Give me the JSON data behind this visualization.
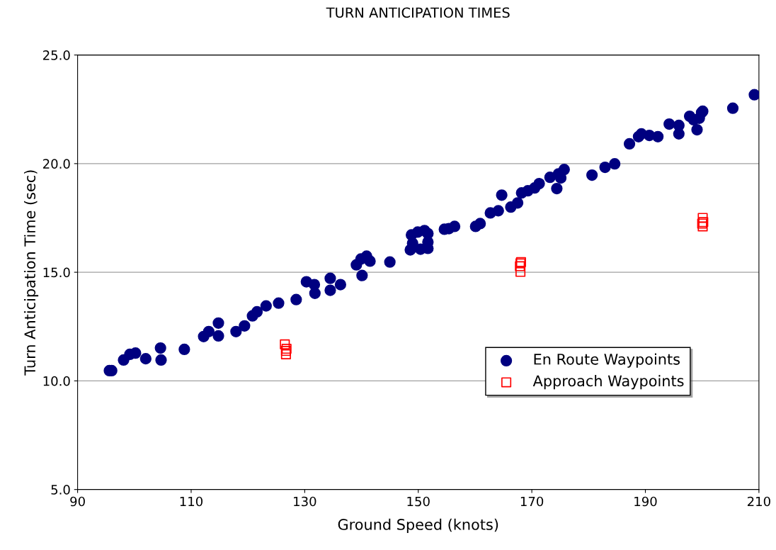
{
  "chart_data": {
    "type": "scatter",
    "title": "TURN ANTICIPATION TIMES",
    "xlabel": "Ground Speed (knots)",
    "ylabel": "Turn Anticipation Time (sec)",
    "xlim": [
      90,
      210
    ],
    "xticks": [
      90,
      110,
      130,
      150,
      170,
      190,
      210
    ],
    "ylim": [
      5,
      25
    ],
    "yticks": [
      {
        "value": 5,
        "label": "5.0"
      },
      {
        "value": 10,
        "label": "10.0"
      },
      {
        "value": 15,
        "label": "15.0"
      },
      {
        "value": 20,
        "label": "20.0"
      },
      {
        "value": 25,
        "label": "25.0"
      }
    ],
    "grid": "y",
    "legend": "bottom right",
    "series": [
      {
        "name": "En Route Waypoints",
        "color": "#000080",
        "marker": "circle",
        "x": [
          95.6,
          96.0,
          98.1,
          99.2,
          100.2,
          102.0,
          104.6,
          104.7,
          108.8,
          112.2,
          113.1,
          114.8,
          114.8,
          117.9,
          119.4,
          120.8,
          121.6,
          123.2,
          125.4,
          128.5,
          130.3,
          131.7,
          131.8,
          134.5,
          134.5,
          136.3,
          139.1,
          139.9,
          140.1,
          140.9,
          141.5,
          145.0,
          148.6,
          148.8,
          149.0,
          149.9,
          150.4,
          151.1,
          151.7,
          151.7,
          151.7,
          154.6,
          155.4,
          156.4,
          160.1,
          160.9,
          162.7,
          164.1,
          164.7,
          166.3,
          167.5,
          168.2,
          169.3,
          170.5,
          171.3,
          173.2,
          174.4,
          174.7,
          175.1,
          175.7,
          180.6,
          182.9,
          184.6,
          187.2,
          188.8,
          189.3,
          190.7,
          192.2,
          194.2,
          195.9,
          195.9,
          197.8,
          198.5,
          199.1,
          199.5,
          199.9,
          200.1,
          205.4,
          209.2
        ],
        "values": [
          10.47,
          10.47,
          10.96,
          11.22,
          11.28,
          11.02,
          11.51,
          10.96,
          11.45,
          12.04,
          12.27,
          12.07,
          12.66,
          12.27,
          12.53,
          12.99,
          13.18,
          13.45,
          13.58,
          13.74,
          14.56,
          14.43,
          14.03,
          14.72,
          14.17,
          14.43,
          15.34,
          15.61,
          14.85,
          15.74,
          15.51,
          15.47,
          16.03,
          16.72,
          16.33,
          16.85,
          16.06,
          16.92,
          16.78,
          16.39,
          16.1,
          16.98,
          17.01,
          17.11,
          17.11,
          17.24,
          17.73,
          17.83,
          18.55,
          18.0,
          18.19,
          18.65,
          18.75,
          18.88,
          19.08,
          19.37,
          18.85,
          19.53,
          19.34,
          19.73,
          19.47,
          19.83,
          19.99,
          20.91,
          21.24,
          21.37,
          21.3,
          21.24,
          21.82,
          21.76,
          21.37,
          22.18,
          22.02,
          21.56,
          22.09,
          22.35,
          22.41,
          22.55,
          23.17
        ]
      },
      {
        "name": "Approach Waypoints",
        "color": "#ff0000",
        "marker": "square",
        "x": [
          126.5,
          126.7,
          126.8,
          126.7,
          168.0,
          168.0,
          167.9,
          168.1,
          200.1,
          200.1,
          200.2,
          200.0
        ],
        "values": [
          11.68,
          11.22,
          11.48,
          11.38,
          15.41,
          15.02,
          15.28,
          15.47,
          17.5,
          17.11,
          17.31,
          17.24
        ]
      }
    ]
  }
}
